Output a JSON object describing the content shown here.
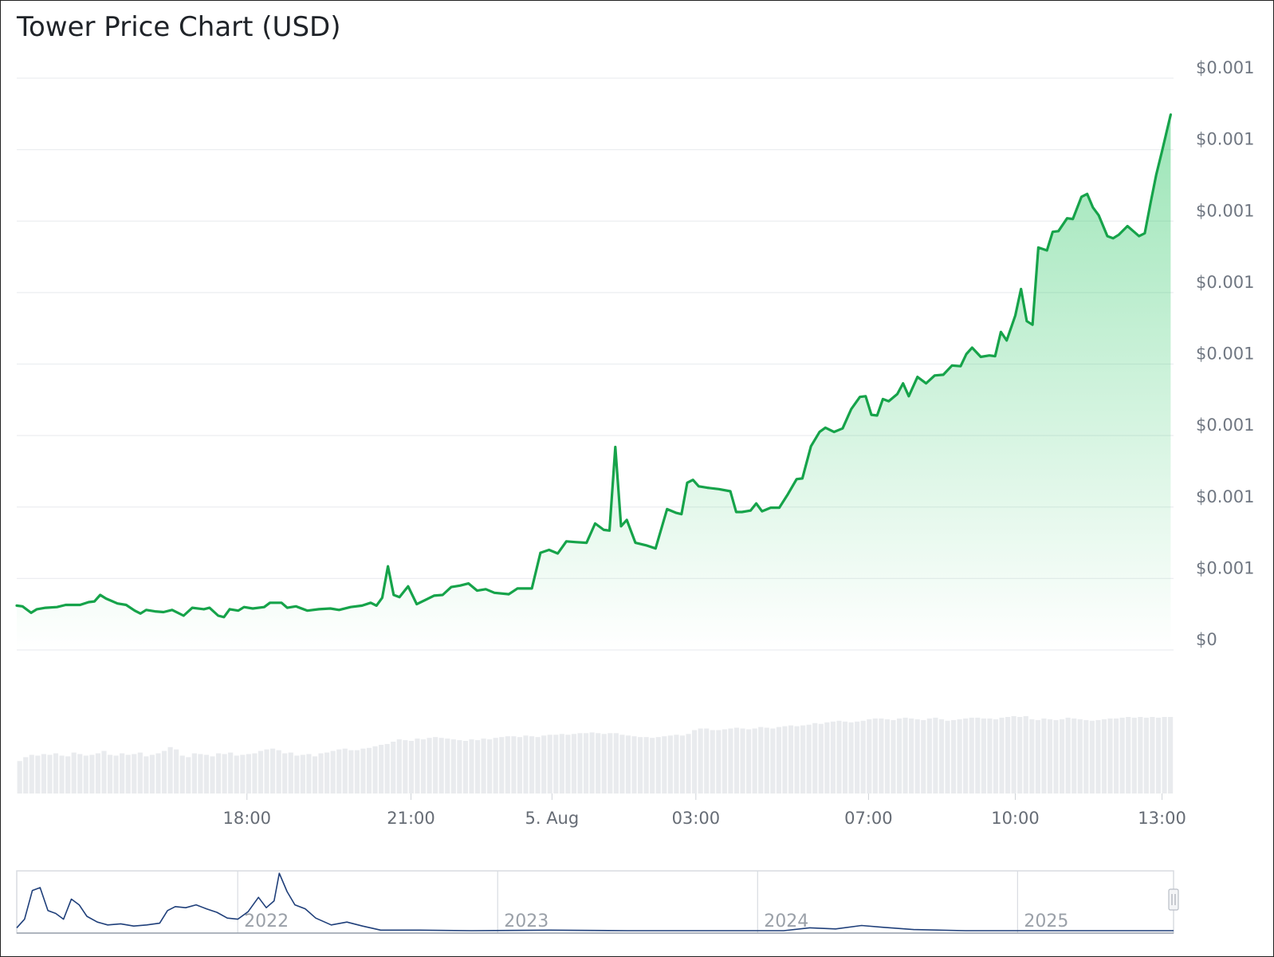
{
  "title": "Tower Price Chart (USD)",
  "colors": {
    "price_line": "#16a34a",
    "price_fill": "#22c55e",
    "volume_bars": "#e9ebee",
    "navigator_line": "#1f3f7a",
    "gridline": "#eceef1"
  },
  "chart_data": [
    {
      "type": "line",
      "title": "Tower Price Chart (USD)",
      "y_tick_labels": [
        "$0",
        "$0.001",
        "$0.001",
        "$0.001",
        "$0.001",
        "$0.001",
        "$0.001",
        "$0.001",
        "$0.001"
      ],
      "x_tick_labels": [
        {
          "label": "18:00",
          "x": 4.5
        },
        {
          "label": "21:00",
          "x": 7.35
        },
        {
          "label": "5. Aug",
          "x": 9.8
        },
        {
          "label": "03:00",
          "x": 12.3
        },
        {
          "label": "07:00",
          "x": 15.3
        },
        {
          "label": "10:00",
          "x": 17.85
        },
        {
          "label": "13:00",
          "x": 20.4
        }
      ],
      "x_range": [
        0.5,
        20.6
      ],
      "ylim": [
        0,
        8
      ],
      "grid": true,
      "legend": "none",
      "series": [
        {
          "values": [
            [
              0.5,
              0.62
            ],
            [
              0.6,
              0.61
            ],
            [
              0.75,
              0.52
            ],
            [
              0.85,
              0.57
            ],
            [
              1.0,
              0.59
            ],
            [
              1.2,
              0.6
            ],
            [
              1.35,
              0.63
            ],
            [
              1.6,
              0.63
            ],
            [
              1.75,
              0.67
            ],
            [
              1.85,
              0.68
            ],
            [
              1.95,
              0.77
            ],
            [
              2.05,
              0.72
            ],
            [
              2.25,
              0.65
            ],
            [
              2.4,
              0.63
            ],
            [
              2.55,
              0.55
            ],
            [
              2.65,
              0.51
            ],
            [
              2.75,
              0.56
            ],
            [
              2.9,
              0.54
            ],
            [
              3.05,
              0.53
            ],
            [
              3.2,
              0.56
            ],
            [
              3.4,
              0.48
            ],
            [
              3.55,
              0.59
            ],
            [
              3.75,
              0.57
            ],
            [
              3.85,
              0.59
            ],
            [
              4.0,
              0.48
            ],
            [
              4.1,
              0.46
            ],
            [
              4.2,
              0.57
            ],
            [
              4.35,
              0.55
            ],
            [
              4.45,
              0.6
            ],
            [
              4.6,
              0.58
            ],
            [
              4.8,
              0.6
            ],
            [
              4.9,
              0.66
            ],
            [
              5.1,
              0.66
            ],
            [
              5.2,
              0.59
            ],
            [
              5.35,
              0.61
            ],
            [
              5.55,
              0.55
            ],
            [
              5.75,
              0.57
            ],
            [
              5.95,
              0.58
            ],
            [
              6.1,
              0.56
            ],
            [
              6.3,
              0.6
            ],
            [
              6.5,
              0.62
            ],
            [
              6.65,
              0.66
            ],
            [
              6.75,
              0.62
            ],
            [
              6.85,
              0.73
            ],
            [
              6.95,
              1.17
            ],
            [
              7.05,
              0.77
            ],
            [
              7.15,
              0.74
            ],
            [
              7.3,
              0.89
            ],
            [
              7.45,
              0.64
            ],
            [
              7.6,
              0.7
            ],
            [
              7.75,
              0.76
            ],
            [
              7.9,
              0.77
            ],
            [
              8.05,
              0.88
            ],
            [
              8.2,
              0.9
            ],
            [
              8.35,
              0.93
            ],
            [
              8.5,
              0.83
            ],
            [
              8.65,
              0.85
            ],
            [
              8.8,
              0.8
            ],
            [
              9.05,
              0.78
            ],
            [
              9.2,
              0.86
            ],
            [
              9.45,
              0.86
            ],
            [
              9.6,
              1.36
            ],
            [
              9.75,
              1.4
            ],
            [
              9.9,
              1.35
            ],
            [
              10.05,
              1.52
            ],
            [
              10.2,
              1.51
            ],
            [
              10.4,
              1.5
            ],
            [
              10.55,
              1.77
            ],
            [
              10.7,
              1.68
            ],
            [
              10.8,
              1.67
            ],
            [
              10.9,
              2.84
            ],
            [
              11.0,
              1.73
            ],
            [
              11.1,
              1.82
            ],
            [
              11.25,
              1.5
            ],
            [
              11.45,
              1.46
            ],
            [
              11.6,
              1.42
            ],
            [
              11.8,
              1.97
            ],
            [
              11.95,
              1.92
            ],
            [
              12.05,
              1.9
            ],
            [
              12.15,
              2.34
            ],
            [
              12.25,
              2.38
            ],
            [
              12.35,
              2.29
            ],
            [
              12.5,
              2.27
            ],
            [
              12.7,
              2.25
            ],
            [
              12.9,
              2.22
            ],
            [
              13.0,
              1.93
            ],
            [
              13.1,
              1.93
            ],
            [
              13.25,
              1.95
            ],
            [
              13.35,
              2.05
            ],
            [
              13.45,
              1.94
            ],
            [
              13.6,
              1.99
            ],
            [
              13.75,
              1.99
            ],
            [
              13.9,
              2.18
            ],
            [
              14.05,
              2.39
            ],
            [
              14.15,
              2.4
            ],
            [
              14.3,
              2.85
            ],
            [
              14.45,
              3.05
            ],
            [
              14.55,
              3.11
            ],
            [
              14.7,
              3.05
            ],
            [
              14.85,
              3.1
            ],
            [
              15.0,
              3.37
            ],
            [
              15.15,
              3.54
            ],
            [
              15.25,
              3.55
            ],
            [
              15.35,
              3.29
            ],
            [
              15.45,
              3.28
            ],
            [
              15.55,
              3.51
            ],
            [
              15.65,
              3.48
            ],
            [
              15.8,
              3.58
            ],
            [
              15.9,
              3.73
            ],
            [
              16.0,
              3.55
            ],
            [
              16.15,
              3.82
            ],
            [
              16.3,
              3.73
            ],
            [
              16.45,
              3.84
            ],
            [
              16.6,
              3.85
            ],
            [
              16.75,
              3.98
            ],
            [
              16.9,
              3.97
            ],
            [
              17.0,
              4.14
            ],
            [
              17.1,
              4.23
            ],
            [
              17.25,
              4.1
            ],
            [
              17.4,
              4.12
            ],
            [
              17.5,
              4.11
            ],
            [
              17.6,
              4.45
            ],
            [
              17.7,
              4.33
            ],
            [
              17.85,
              4.68
            ],
            [
              17.95,
              5.05
            ],
            [
              18.05,
              4.6
            ],
            [
              18.15,
              4.55
            ],
            [
              18.25,
              5.63
            ],
            [
              18.4,
              5.59
            ],
            [
              18.5,
              5.85
            ],
            [
              18.6,
              5.86
            ],
            [
              18.75,
              6.04
            ],
            [
              18.85,
              6.03
            ],
            [
              19.0,
              6.34
            ],
            [
              19.1,
              6.38
            ],
            [
              19.2,
              6.19
            ],
            [
              19.3,
              6.08
            ],
            [
              19.45,
              5.79
            ],
            [
              19.55,
              5.76
            ],
            [
              19.65,
              5.81
            ],
            [
              19.8,
              5.93
            ],
            [
              19.9,
              5.86
            ],
            [
              20.0,
              5.79
            ],
            [
              20.1,
              5.83
            ],
            [
              20.2,
              6.25
            ],
            [
              20.3,
              6.65
            ],
            [
              20.4,
              6.98
            ],
            [
              20.55,
              7.49
            ]
          ]
        }
      ]
    },
    {
      "type": "bar",
      "title": "",
      "note_series": "volume",
      "values": [
        0.42,
        0.47,
        0.5,
        0.49,
        0.51,
        0.5,
        0.52,
        0.49,
        0.48,
        0.53,
        0.51,
        0.49,
        0.5,
        0.52,
        0.55,
        0.5,
        0.49,
        0.52,
        0.5,
        0.51,
        0.53,
        0.48,
        0.5,
        0.52,
        0.55,
        0.6,
        0.57,
        0.49,
        0.47,
        0.52,
        0.51,
        0.5,
        0.48,
        0.52,
        0.51,
        0.53,
        0.49,
        0.5,
        0.51,
        0.52,
        0.55,
        0.57,
        0.58,
        0.56,
        0.52,
        0.53,
        0.49,
        0.5,
        0.51,
        0.48,
        0.52,
        0.53,
        0.55,
        0.57,
        0.58,
        0.56,
        0.56,
        0.58,
        0.59,
        0.61,
        0.63,
        0.64,
        0.67,
        0.7,
        0.69,
        0.68,
        0.71,
        0.7,
        0.72,
        0.73,
        0.72,
        0.71,
        0.7,
        0.69,
        0.68,
        0.7,
        0.69,
        0.71,
        0.7,
        0.72,
        0.73,
        0.74,
        0.74,
        0.73,
        0.75,
        0.74,
        0.73,
        0.75,
        0.76,
        0.76,
        0.77,
        0.76,
        0.77,
        0.78,
        0.78,
        0.79,
        0.78,
        0.77,
        0.78,
        0.78,
        0.76,
        0.75,
        0.74,
        0.73,
        0.73,
        0.72,
        0.73,
        0.74,
        0.75,
        0.76,
        0.75,
        0.77,
        0.82,
        0.84,
        0.84,
        0.82,
        0.82,
        0.83,
        0.84,
        0.85,
        0.84,
        0.83,
        0.84,
        0.86,
        0.85,
        0.84,
        0.86,
        0.87,
        0.88,
        0.87,
        0.88,
        0.89,
        0.91,
        0.9,
        0.92,
        0.93,
        0.94,
        0.93,
        0.92,
        0.93,
        0.94,
        0.96,
        0.97,
        0.97,
        0.96,
        0.95,
        0.97,
        0.98,
        0.97,
        0.96,
        0.95,
        0.97,
        0.98,
        0.96,
        0.94,
        0.95,
        0.96,
        0.97,
        0.98,
        0.98,
        0.97,
        0.97,
        0.96,
        0.98,
        0.99,
        1.0,
        0.99,
        1.0,
        0.96,
        0.95,
        0.97,
        0.96,
        0.95,
        0.96,
        0.98,
        0.97,
        0.96,
        0.95,
        0.94,
        0.95,
        0.96,
        0.97,
        0.97,
        0.98,
        0.99,
        0.98,
        0.99,
        0.98,
        0.99,
        0.98,
        0.99,
        0.99
      ]
    },
    {
      "type": "line",
      "title": "",
      "x_tick_labels": [
        "2022",
        "2023",
        "2024",
        "2025"
      ],
      "xlim": [
        2021.15,
        2025.6
      ],
      "grid": true,
      "series": [
        {
          "values": [
            [
              2021.15,
              0.05
            ],
            [
              2021.18,
              0.2
            ],
            [
              2021.21,
              0.7
            ],
            [
              2021.24,
              0.75
            ],
            [
              2021.27,
              0.35
            ],
            [
              2021.3,
              0.3
            ],
            [
              2021.33,
              0.2
            ],
            [
              2021.36,
              0.55
            ],
            [
              2021.39,
              0.45
            ],
            [
              2021.42,
              0.25
            ],
            [
              2021.46,
              0.15
            ],
            [
              2021.5,
              0.1
            ],
            [
              2021.55,
              0.12
            ],
            [
              2021.6,
              0.08
            ],
            [
              2021.65,
              0.1
            ],
            [
              2021.7,
              0.13
            ],
            [
              2021.73,
              0.35
            ],
            [
              2021.76,
              0.42
            ],
            [
              2021.8,
              0.4
            ],
            [
              2021.84,
              0.45
            ],
            [
              2021.88,
              0.38
            ],
            [
              2021.92,
              0.32
            ],
            [
              2021.96,
              0.22
            ],
            [
              2022.0,
              0.2
            ],
            [
              2022.04,
              0.33
            ],
            [
              2022.08,
              0.58
            ],
            [
              2022.11,
              0.4
            ],
            [
              2022.14,
              0.52
            ],
            [
              2022.16,
              1.0
            ],
            [
              2022.19,
              0.68
            ],
            [
              2022.22,
              0.45
            ],
            [
              2022.26,
              0.38
            ],
            [
              2022.3,
              0.22
            ],
            [
              2022.36,
              0.1
            ],
            [
              2022.42,
              0.15
            ],
            [
              2022.48,
              0.08
            ],
            [
              2022.55,
              0.01
            ],
            [
              2022.7,
              0.01
            ],
            [
              2022.9,
              0.0
            ],
            [
              2023.2,
              0.01
            ],
            [
              2023.5,
              0.0
            ],
            [
              2023.8,
              0.0
            ],
            [
              2024.1,
              0.0
            ],
            [
              2024.2,
              0.05
            ],
            [
              2024.3,
              0.03
            ],
            [
              2024.4,
              0.09
            ],
            [
              2024.48,
              0.06
            ],
            [
              2024.6,
              0.02
            ],
            [
              2024.8,
              0.0
            ],
            [
              2025.2,
              0.0
            ],
            [
              2025.6,
              0.0
            ]
          ]
        }
      ]
    }
  ]
}
